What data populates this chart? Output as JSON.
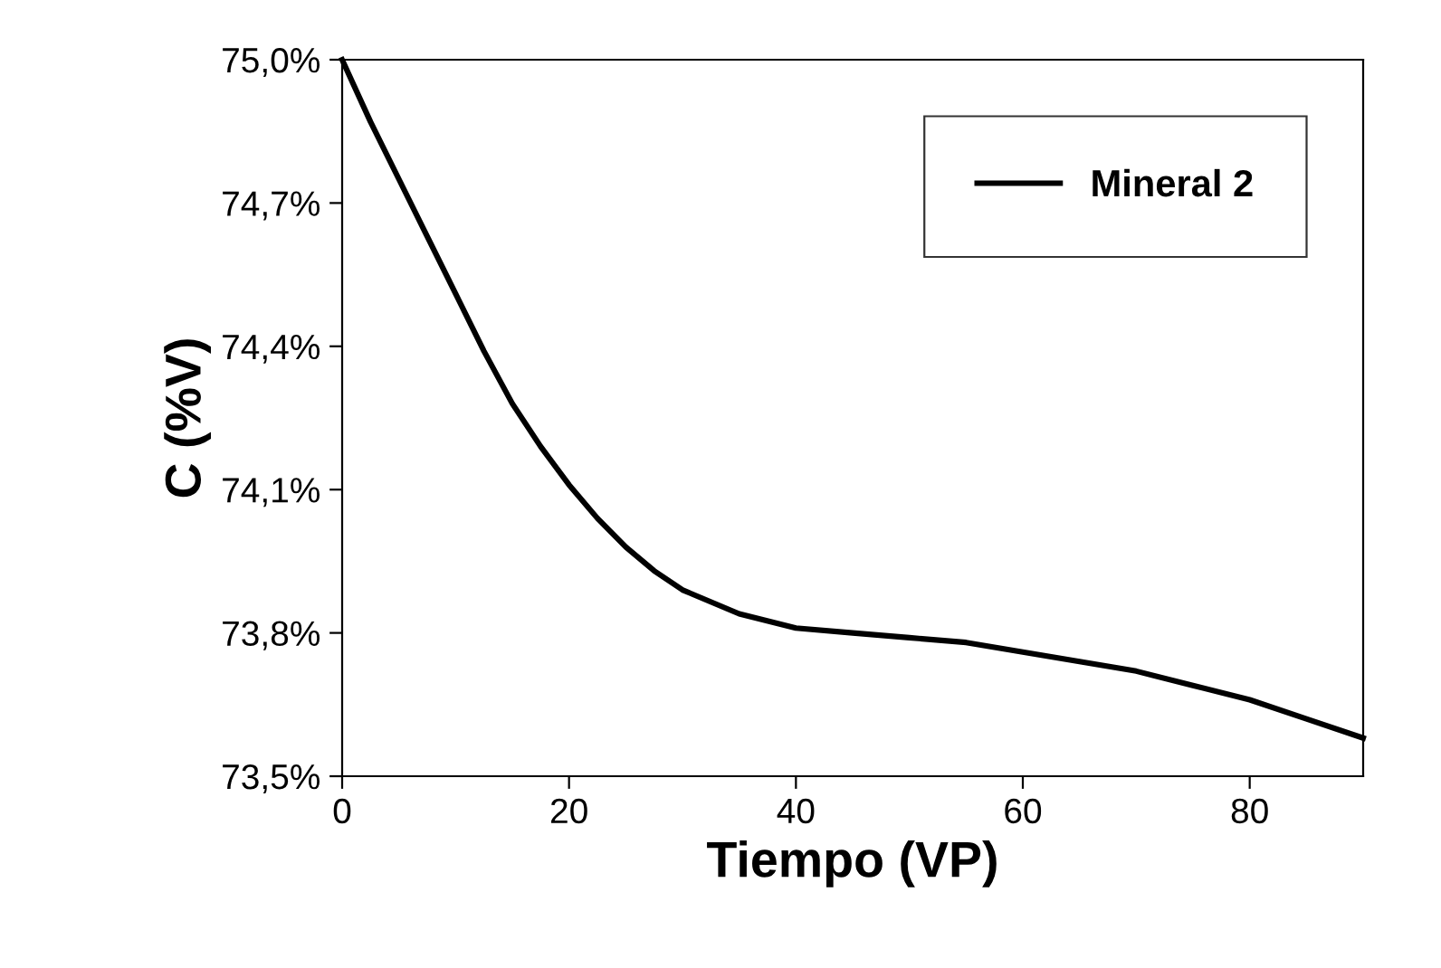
{
  "chart_data": {
    "type": "line",
    "xlabel": "Tiempo (VP)",
    "ylabel": "C (%V)",
    "x": [
      0,
      2.5,
      5,
      7.5,
      10,
      12.5,
      15,
      17.5,
      20,
      22.5,
      25,
      27.5,
      30,
      35,
      40,
      45,
      50,
      55,
      60,
      65,
      70,
      75,
      80,
      85,
      90
    ],
    "series": [
      {
        "name": "Mineral 2",
        "color": "#000000",
        "values": [
          75.0,
          74.87,
          74.75,
          74.63,
          74.51,
          74.39,
          74.28,
          74.19,
          74.11,
          74.04,
          73.98,
          73.93,
          73.89,
          73.84,
          73.81,
          73.8,
          73.79,
          73.78,
          73.76,
          73.74,
          73.72,
          73.69,
          73.66,
          73.62,
          73.58
        ]
      }
    ],
    "xlim": [
      0,
      90
    ],
    "xticks": [
      0,
      20,
      40,
      60,
      80
    ],
    "ylim": [
      73.5,
      75.0
    ],
    "yticks": [
      {
        "value": 73.5,
        "label": "73,5%"
      },
      {
        "value": 73.8,
        "label": "73,8%"
      },
      {
        "value": 74.1,
        "label": "74,1%"
      },
      {
        "value": 74.4,
        "label": "74,4%"
      },
      {
        "value": 74.7,
        "label": "74,7%"
      },
      {
        "value": 75.0,
        "label": "75,0%"
      }
    ],
    "grid": false,
    "legend": "top right",
    "marker": "none",
    "line_style": "solid"
  }
}
